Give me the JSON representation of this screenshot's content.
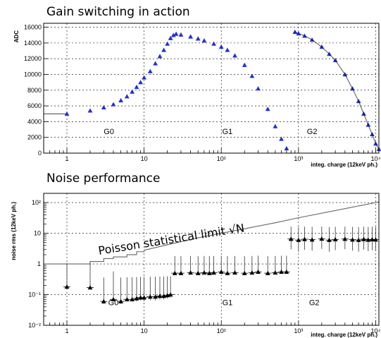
{
  "chart_data": [
    {
      "type": "scatter",
      "title": "Gain switching in action",
      "ylabel": "ADC",
      "xlabel": "integ. charge (12keV ph.)",
      "xscale": "log",
      "xlim": [
        0.5,
        11000
      ],
      "ylim": [
        0,
        16500
      ],
      "yticks": [
        0,
        2000,
        4000,
        6000,
        8000,
        10000,
        12000,
        14000,
        16000
      ],
      "xticks": [
        {
          "value": 1,
          "label": "1"
        },
        {
          "value": 10,
          "label": "10"
        },
        {
          "value": 100,
          "label": "10²"
        },
        {
          "value": 1000,
          "label": "10³"
        },
        {
          "value": 10000,
          "label": "10⁴"
        }
      ],
      "grid": true,
      "region_labels": [
        {
          "text": "G0",
          "x": 3.5,
          "y": 2400
        },
        {
          "text": "G1",
          "x": 120,
          "y": 2400
        },
        {
          "text": "G2",
          "x": 1500,
          "y": 2400
        }
      ],
      "series": [
        {
          "color": "#1f2fd6",
          "marker": "triangle",
          "x": [
            1,
            2,
            3,
            4,
            5,
            6,
            7,
            8,
            9,
            10,
            12,
            14,
            16,
            18,
            20,
            22,
            24,
            26,
            30,
            40,
            50,
            60,
            80,
            100,
            120,
            150,
            200,
            250,
            300,
            400,
            500,
            600,
            700
          ],
          "y": [
            5000,
            5400,
            5800,
            6200,
            6700,
            7200,
            7800,
            8400,
            9000,
            9600,
            10400,
            11400,
            12300,
            13100,
            13900,
            14600,
            15000,
            15150,
            15050,
            14800,
            14550,
            14300,
            13900,
            13500,
            13100,
            12400,
            11200,
            9800,
            8200,
            5600,
            3400,
            1800,
            600
          ]
        },
        {
          "color": "#1f2fd6",
          "marker": "triangle",
          "x": [
            900,
            1000,
            1200,
            1500,
            2000,
            2500,
            3000,
            4000,
            5000,
            6000,
            7000,
            8000,
            9000,
            10000,
            11000
          ],
          "y": [
            15400,
            15200,
            14900,
            14400,
            13500,
            12600,
            11800,
            10000,
            8200,
            6600,
            5000,
            3600,
            2400,
            1200,
            500
          ]
        }
      ]
    },
    {
      "type": "scatter",
      "title": "Noise performance",
      "ylabel": "noise rms (12keV ph.)",
      "xlabel": "integ. charge (12keV ph.)",
      "xscale": "log",
      "yscale": "log",
      "xlim": [
        0.5,
        11000
      ],
      "ylim": [
        0.01,
        200
      ],
      "yticks": [
        {
          "value": 0.01,
          "label": "10⁻²"
        },
        {
          "value": 0.1,
          "label": "10⁻¹"
        },
        {
          "value": 1,
          "label": "1"
        },
        {
          "value": 10,
          "label": "10"
        },
        {
          "value": 100,
          "label": "10²"
        }
      ],
      "xticks": [
        {
          "value": 1,
          "label": "1"
        },
        {
          "value": 10,
          "label": "10"
        },
        {
          "value": 100,
          "label": "10²"
        },
        {
          "value": 1000,
          "label": "10³"
        },
        {
          "value": 10000,
          "label": "10⁴"
        }
      ],
      "grid": true,
      "annotation": "Poisson statistical limit √N",
      "region_labels": [
        {
          "text": "G0",
          "x": 4,
          "y": 0.045
        },
        {
          "text": "G1",
          "x": 120,
          "y": 0.045
        },
        {
          "text": "G2",
          "x": 1600,
          "y": 0.045
        }
      ],
      "poisson_limit": {
        "color": "#666666",
        "x": [
          0.5,
          1,
          2,
          3,
          4,
          6,
          8,
          10,
          20,
          50,
          100,
          500,
          1000,
          5000,
          11000
        ],
        "y": [
          1,
          1,
          1.2,
          1.5,
          1.7,
          2.0,
          2.5,
          2.8,
          4.2,
          7.1,
          10,
          22,
          32,
          71,
          105
        ]
      },
      "series": [
        {
          "color": "#000000",
          "x": [
            1,
            2,
            3,
            4,
            5,
            6,
            7,
            8,
            9,
            10,
            12,
            14,
            16,
            18,
            20,
            22
          ],
          "y": [
            0.18,
            0.17,
            0.06,
            0.07,
            0.06,
            0.07,
            0.07,
            0.075,
            0.08,
            0.08,
            0.085,
            0.085,
            0.09,
            0.09,
            0.095,
            0.1
          ],
          "err_lo": [
            0.01,
            0.01,
            0.01,
            0.01,
            0.01,
            0.01,
            0.01,
            0.015,
            0.015,
            0.02,
            0.02,
            0.02,
            0.02,
            0.02,
            0.02,
            0.02
          ],
          "err_hi": [
            0.9,
            0.9,
            0.3,
            0.5,
            0.3,
            0.3,
            0.3,
            0.3,
            0.3,
            0.3,
            0.3,
            0.3,
            0.3,
            0.3,
            0.3,
            0.3
          ]
        },
        {
          "color": "#000000",
          "x": [
            25,
            30,
            40,
            50,
            60,
            70,
            80,
            100,
            120,
            150,
            200,
            250,
            300,
            400,
            500,
            600,
            700
          ],
          "y": [
            0.5,
            0.5,
            0.52,
            0.5,
            0.52,
            0.5,
            0.52,
            0.55,
            0.5,
            0.52,
            0.5,
            0.52,
            0.55,
            0.5,
            0.52,
            0.55,
            0.55
          ],
          "err_lo": [
            0.01,
            0.01,
            0.01,
            0.01,
            0.01,
            0.01,
            0.01,
            0.06,
            0.06,
            0.06,
            0.06,
            0.06,
            0.01,
            0.01,
            0.01,
            0.01,
            0.01
          ],
          "err_hi": [
            1.3,
            1.3,
            1.3,
            1.3,
            1.3,
            1.3,
            1.3,
            1.3,
            1.3,
            1.3,
            1.3,
            1.3,
            1.3,
            1.3,
            1.3,
            1.3,
            1.3
          ]
        },
        {
          "color": "#000000",
          "x": [
            800,
            1000,
            1200,
            1500,
            2000,
            2500,
            3000,
            4000,
            5000,
            6000,
            7000,
            8000,
            9000,
            10000
          ],
          "y": [
            6.5,
            6.0,
            6.4,
            6.2,
            6.6,
            6.0,
            6.3,
            6.5,
            6.2,
            6.0,
            6.4,
            6.1,
            6.3,
            6.2
          ],
          "err_lo": [
            3.5,
            3.5,
            3.5,
            3.5,
            3.5,
            3.5,
            3.5,
            3.5,
            3.5,
            3.5,
            3.5,
            3.5,
            3.5,
            3.5
          ],
          "err_hi": [
            10,
            10,
            10,
            10,
            10,
            10,
            10,
            10,
            10,
            10,
            10,
            10,
            10,
            10
          ]
        }
      ]
    }
  ]
}
